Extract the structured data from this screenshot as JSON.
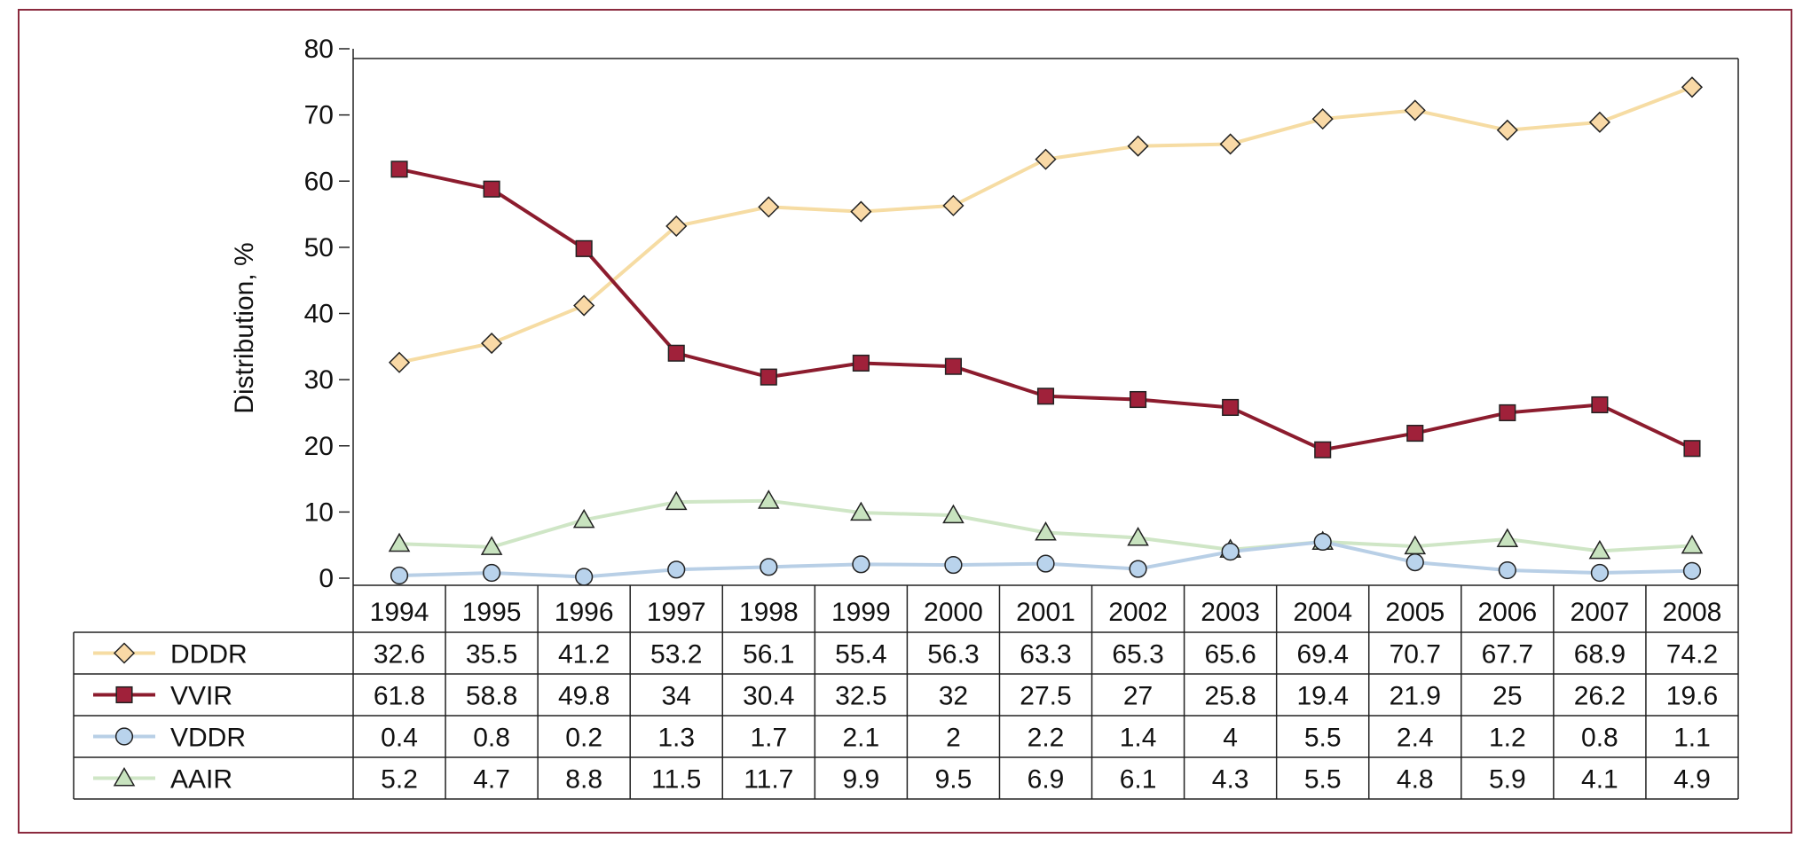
{
  "chart_data": {
    "type": "line",
    "title": "",
    "xlabel": "",
    "ylabel": "Distribution, %",
    "ylim": [
      0,
      80
    ],
    "yticks": [
      0,
      10,
      20,
      30,
      40,
      50,
      60,
      70,
      80
    ],
    "categories": [
      "1994",
      "1995",
      "1996",
      "1997",
      "1998",
      "1999",
      "2000",
      "2001",
      "2002",
      "2003",
      "2004",
      "2005",
      "2006",
      "2007",
      "2008"
    ],
    "grid": false,
    "legend": "bottom-left table",
    "series": [
      {
        "name": "DDDR",
        "marker": "diamond",
        "color": "#f6dca3",
        "marker_fill": "#f9d9a6",
        "values": [
          32.6,
          35.5,
          41.2,
          53.2,
          56.1,
          55.4,
          56.3,
          63.3,
          65.3,
          65.6,
          69.4,
          70.7,
          67.7,
          68.9,
          74.2
        ],
        "labels": [
          "32.6",
          "35.5",
          "41.2",
          "53.2",
          "56.1",
          "55.4",
          "56.3",
          "63.3",
          "65.3",
          "65.6",
          "69.4",
          "70.7",
          "67.7",
          "68.9",
          "74.2"
        ]
      },
      {
        "name": "VVIR",
        "marker": "square",
        "color": "#8c1c2e",
        "marker_fill": "#a0213a",
        "values": [
          61.8,
          58.8,
          49.8,
          34,
          30.4,
          32.5,
          32,
          27.5,
          27,
          25.8,
          19.4,
          21.9,
          25,
          26.2,
          19.6
        ],
        "labels": [
          "61.8",
          "58.8",
          "49.8",
          "34",
          "30.4",
          "32.5",
          "32",
          "27.5",
          "27",
          "25.8",
          "19.4",
          "21.9",
          "25",
          "26.2",
          "19.6"
        ]
      },
      {
        "name": "VDDR",
        "marker": "circle",
        "color": "#b8cfe6",
        "marker_fill": "#b9d3ec",
        "values": [
          0.4,
          0.8,
          0.2,
          1.3,
          1.7,
          2.1,
          2,
          2.2,
          1.4,
          4,
          5.5,
          2.4,
          1.2,
          0.8,
          1.1
        ],
        "labels": [
          "0.4",
          "0.8",
          "0.2",
          "1.3",
          "1.7",
          "2.1",
          "2",
          "2.2",
          "1.4",
          "4",
          "5.5",
          "2.4",
          "1.2",
          "0.8",
          "1.1"
        ]
      },
      {
        "name": "AAIR",
        "marker": "triangle",
        "color": "#cfe6c6",
        "marker_fill": "#c8e3bf",
        "values": [
          5.2,
          4.7,
          8.8,
          11.5,
          11.7,
          9.9,
          9.5,
          6.9,
          6.1,
          4.3,
          5.5,
          4.8,
          5.9,
          4.1,
          4.9
        ],
        "labels": [
          "5.2",
          "4.7",
          "8.8",
          "11.5",
          "11.7",
          "9.9",
          "9.5",
          "6.9",
          "6.1",
          "4.3",
          "5.5",
          "4.8",
          "5.9",
          "4.1",
          "4.9"
        ]
      }
    ]
  }
}
